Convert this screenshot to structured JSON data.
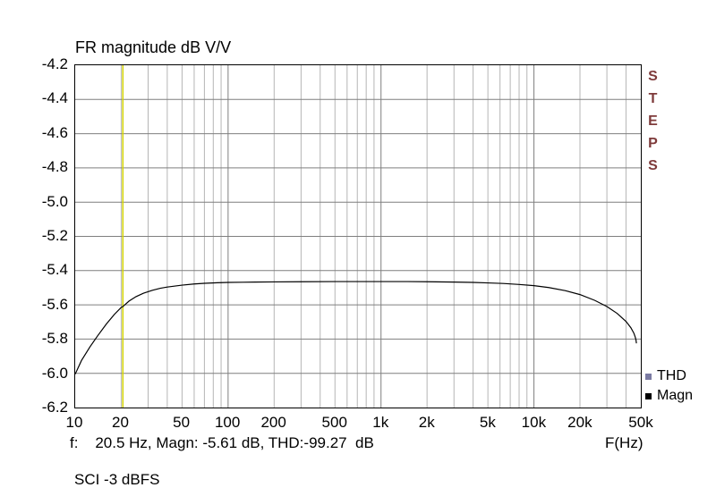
{
  "title": "FR magnitude dB V/V",
  "watermark": {
    "text": "STEPS",
    "color": "#7e3a3a"
  },
  "status_line": "f:    20.5 Hz, Magn: -5.61 dB, THD:-99.27  dB",
  "x_axis_title": "F(Hz)",
  "footer_note": "SCI -3 dBFS",
  "legend": [
    {
      "label": "THD",
      "color": "#7b7ba3"
    },
    {
      "label": "Magn",
      "color": "#000000"
    }
  ],
  "chart_data": {
    "type": "line",
    "title": "FR magnitude dB V/V",
    "x": {
      "label": "F(Hz)",
      "scale": "log",
      "min": 10,
      "max": 50000,
      "ticks": [
        {
          "f": 10,
          "label": "10"
        },
        {
          "f": 20,
          "label": "20"
        },
        {
          "f": 50,
          "label": "50"
        },
        {
          "f": 100,
          "label": "100"
        },
        {
          "f": 200,
          "label": "200"
        },
        {
          "f": 500,
          "label": "500"
        },
        {
          "f": 1000,
          "label": "1k"
        },
        {
          "f": 2000,
          "label": "2k"
        },
        {
          "f": 5000,
          "label": "5k"
        },
        {
          "f": 10000,
          "label": "10k"
        },
        {
          "f": 20000,
          "label": "20k"
        },
        {
          "f": 50000,
          "label": "50k"
        }
      ]
    },
    "y": {
      "unit": "dB",
      "min": -6.2,
      "max": -4.2,
      "tick_step": 0.2,
      "tick_labels": [
        "-4.2",
        "-4.4",
        "-4.6",
        "-4.8",
        "-5.0",
        "-5.2",
        "-5.4",
        "-5.6",
        "-5.8",
        "-6.0",
        "-6.2"
      ]
    },
    "grid": {
      "major_color": "#7f7f7f",
      "minor_color": "#b5b5b5",
      "on": true
    },
    "cursor": {
      "freq_hz": 20.5,
      "magn_db": -5.61,
      "thd_db": -99.27,
      "color": "#d2d200"
    },
    "series": [
      {
        "name": "Magn",
        "color": "#000000",
        "visible": true,
        "points": [
          [
            10,
            -6.005
          ],
          [
            11,
            -5.925
          ],
          [
            12.5,
            -5.845
          ],
          [
            14,
            -5.782
          ],
          [
            16,
            -5.712
          ],
          [
            18,
            -5.657
          ],
          [
            20,
            -5.615
          ],
          [
            20.5,
            -5.61
          ],
          [
            22.5,
            -5.578
          ],
          [
            25,
            -5.552
          ],
          [
            28,
            -5.532
          ],
          [
            32,
            -5.515
          ],
          [
            36,
            -5.503
          ],
          [
            40,
            -5.496
          ],
          [
            45,
            -5.49
          ],
          [
            50,
            -5.485
          ],
          [
            60,
            -5.478
          ],
          [
            70,
            -5.474
          ],
          [
            85,
            -5.471
          ],
          [
            100,
            -5.469
          ],
          [
            125,
            -5.468
          ],
          [
            150,
            -5.467
          ],
          [
            200,
            -5.466
          ],
          [
            300,
            -5.465
          ],
          [
            500,
            -5.464
          ],
          [
            700,
            -5.464
          ],
          [
            1000,
            -5.464
          ],
          [
            1500,
            -5.464
          ],
          [
            2000,
            -5.465
          ],
          [
            3000,
            -5.467
          ],
          [
            4000,
            -5.469
          ],
          [
            5000,
            -5.472
          ],
          [
            6300,
            -5.475
          ],
          [
            8000,
            -5.481
          ],
          [
            10000,
            -5.488
          ],
          [
            12500,
            -5.499
          ],
          [
            16000,
            -5.517
          ],
          [
            20000,
            -5.54
          ],
          [
            25000,
            -5.574
          ],
          [
            30000,
            -5.61
          ],
          [
            35000,
            -5.65
          ],
          [
            40000,
            -5.697
          ],
          [
            43000,
            -5.733
          ],
          [
            45000,
            -5.765
          ],
          [
            46000,
            -5.789
          ],
          [
            46500,
            -5.806
          ],
          [
            46800,
            -5.825
          ]
        ]
      },
      {
        "name": "THD",
        "color": "#7b7ba3",
        "visible": false,
        "points": []
      }
    ]
  }
}
